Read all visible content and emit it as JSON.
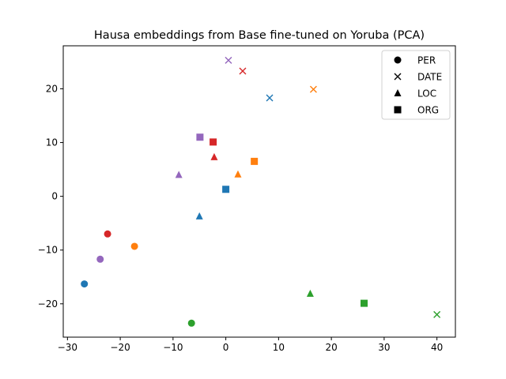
{
  "chart_data": {
    "type": "scatter",
    "title": "Hausa embeddings from Base fine-tuned on Yoruba (PCA)",
    "xlabel": "",
    "ylabel": "",
    "xlim": [
      -30.8,
      43.5
    ],
    "ylim": [
      -26.2,
      28.0
    ],
    "xticks": [
      -30,
      -20,
      -10,
      0,
      10,
      20,
      30,
      40
    ],
    "yticks": [
      -20,
      -10,
      0,
      10,
      20
    ],
    "grid": false,
    "legend": {
      "placement": "top-right",
      "entries": [
        {
          "label": "PER",
          "marker": "circle"
        },
        {
          "label": "DATE",
          "marker": "x"
        },
        {
          "label": "LOC",
          "marker": "triangle"
        },
        {
          "label": "ORG",
          "marker": "square"
        }
      ]
    },
    "colors": {
      "blue": "#1f77b4",
      "orange": "#ff7f0e",
      "green": "#2ca02c",
      "red": "#d62728",
      "purple": "#9467bd"
    },
    "points": [
      {
        "entity": "PER",
        "marker": "circle",
        "color": "blue",
        "x": -26.8,
        "y": -16.3
      },
      {
        "entity": "PER",
        "marker": "circle",
        "color": "orange",
        "x": -17.3,
        "y": -9.3
      },
      {
        "entity": "PER",
        "marker": "circle",
        "color": "green",
        "x": -6.5,
        "y": -23.6
      },
      {
        "entity": "PER",
        "marker": "circle",
        "color": "red",
        "x": -22.4,
        "y": -7.0
      },
      {
        "entity": "PER",
        "marker": "circle",
        "color": "purple",
        "x": -23.8,
        "y": -11.7
      },
      {
        "entity": "DATE",
        "marker": "x",
        "color": "blue",
        "x": 8.3,
        "y": 18.3
      },
      {
        "entity": "DATE",
        "marker": "x",
        "color": "orange",
        "x": 16.6,
        "y": 19.9
      },
      {
        "entity": "DATE",
        "marker": "x",
        "color": "green",
        "x": 40.0,
        "y": -22.0
      },
      {
        "entity": "DATE",
        "marker": "x",
        "color": "red",
        "x": 3.2,
        "y": 23.3
      },
      {
        "entity": "DATE",
        "marker": "x",
        "color": "purple",
        "x": 0.5,
        "y": 25.3
      },
      {
        "entity": "LOC",
        "marker": "triangle",
        "color": "blue",
        "x": -5.0,
        "y": -3.7
      },
      {
        "entity": "LOC",
        "marker": "triangle",
        "color": "orange",
        "x": 2.3,
        "y": 4.1
      },
      {
        "entity": "LOC",
        "marker": "triangle",
        "color": "green",
        "x": 16.0,
        "y": -18.1
      },
      {
        "entity": "LOC",
        "marker": "triangle",
        "color": "red",
        "x": -2.2,
        "y": 7.3
      },
      {
        "entity": "LOC",
        "marker": "triangle",
        "color": "purple",
        "x": -8.9,
        "y": 4.0
      },
      {
        "entity": "ORG",
        "marker": "square",
        "color": "blue",
        "x": 0.0,
        "y": 1.3
      },
      {
        "entity": "ORG",
        "marker": "square",
        "color": "orange",
        "x": 5.4,
        "y": 6.5
      },
      {
        "entity": "ORG",
        "marker": "square",
        "color": "green",
        "x": 26.2,
        "y": -19.9
      },
      {
        "entity": "ORG",
        "marker": "square",
        "color": "red",
        "x": -2.4,
        "y": 10.1
      },
      {
        "entity": "ORG",
        "marker": "square",
        "color": "purple",
        "x": -4.9,
        "y": 11.0
      }
    ]
  }
}
